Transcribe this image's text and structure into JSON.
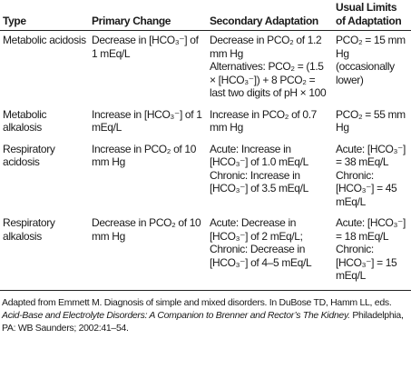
{
  "table": {
    "header": [
      "Type",
      "Primary Change",
      "Secondary Adaptation",
      "Usual Limits of Adaptation"
    ],
    "rows": [
      [
        [
          "Metabolic acidosis"
        ],
        [
          "Decrease in [HCO₃⁻] of 1 mEq/L"
        ],
        [
          "Decrease in PCO₂ of 1.2 mm Hg",
          "Alternatives: PCO₂ = (1.5 × [HCO₃⁻]) + 8 PCO₂ = last two digits of pH × 100"
        ],
        [
          "PCO₂ = 15 mm Hg (occasionally lower)"
        ]
      ],
      [
        [
          "Metabolic alkalosis"
        ],
        [
          "Increase in [HCO₃⁻] of 1 mEq/L"
        ],
        [
          "Increase in PCO₂ of 0.7 mm Hg"
        ],
        [
          "PCO₂ = 55 mm Hg"
        ]
      ],
      [
        [
          "Respiratory acidosis"
        ],
        [
          "Increase in PCO₂ of 10 mm Hg"
        ],
        [
          "Acute: Increase in [HCO₃⁻] of 1.0 mEq/L",
          "Chronic: Increase in [HCO₃⁻] of 3.5 mEq/L"
        ],
        [
          "Acute: [HCO₃⁻] = 38 mEq/L",
          "Chronic: [HCO₃⁻] = 45 mEq/L"
        ]
      ],
      [
        [
          "Respiratory alkalosis"
        ],
        [
          "Decrease in PCO₂ of 10 mm Hg"
        ],
        [
          "Acute: Decrease in [HCO₃⁻] of 2 mEq/L;",
          "Chronic: Decrease in [HCO₃⁻] of 4–5 mEq/L"
        ],
        [
          "Acute: [HCO₃⁻] = 18 mEq/L",
          "Chronic: [HCO₃⁻] = 15 mEq/L"
        ]
      ]
    ]
  },
  "footnote": {
    "before": "Adapted from Emmett M. Diagnosis of simple and mixed disorders. In DuBose TD, Hamm LL, eds. ",
    "italic": "Acid-Base and Electrolyte Disorders: A Companion to Brenner and Rector’s The Kidney.",
    "after": " Philadelphia, PA: WB Saunders; 2002:41–54."
  }
}
